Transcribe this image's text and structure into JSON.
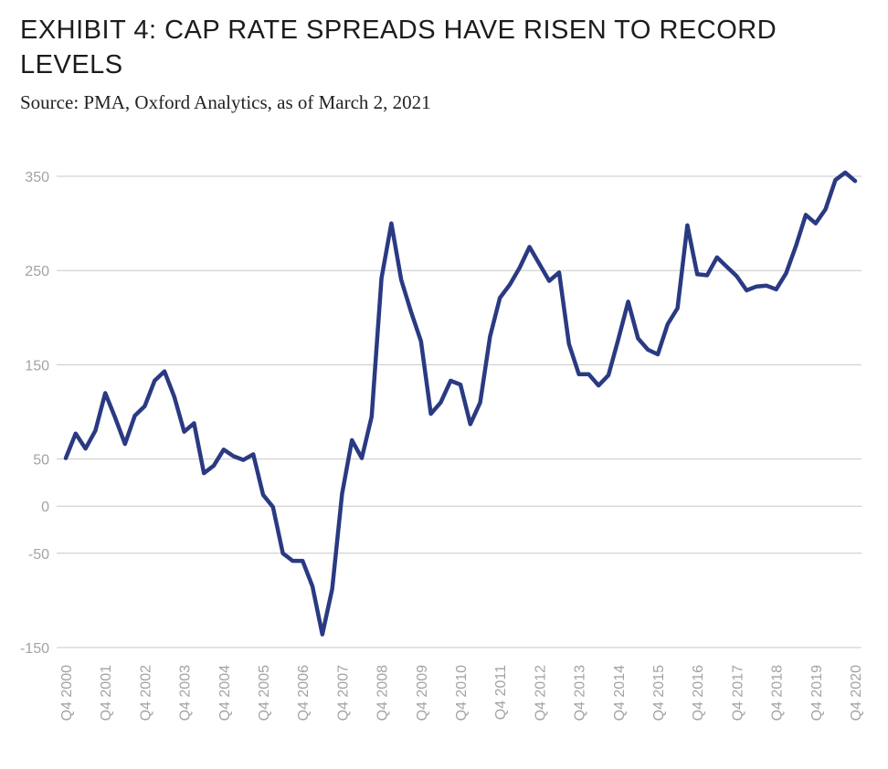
{
  "title": "EXHIBIT 4: CAP RATE SPREADS HAVE RISEN TO RECORD LEVELS",
  "subtitle": "Source: PMA, Oxford Analytics, as of March 2, 2021",
  "chart_data": {
    "type": "line",
    "title": "EXHIBIT 4: CAP RATE SPREADS HAVE RISEN TO RECORD LEVELS",
    "xlabel": "",
    "ylabel": "",
    "y_ticks": [
      350,
      250,
      150,
      50,
      0,
      -50,
      -150
    ],
    "x_tick_labels": [
      "Q4 2000",
      "Q4 2001",
      "Q4 2002",
      "Q4 2003",
      "Q4 2004",
      "Q4 2005",
      "Q4 2006",
      "Q4 2007",
      "Q4 2008",
      "Q4 2009",
      "Q4 2010",
      "Q4 2011",
      "Q4 2012",
      "Q4 2013",
      "Q4 2014",
      "Q4 2015",
      "Q4 2016",
      "Q4 2017",
      "Q4 2018",
      "Q4 2019",
      "Q4 2020"
    ],
    "grid": true,
    "line_color": "#2a3a82",
    "series": [
      {
        "values": [
          51,
          77,
          61,
          80,
          120,
          94,
          66,
          96,
          106,
          133,
          143,
          116,
          79,
          88,
          35,
          43,
          60,
          53,
          49,
          55,
          12,
          -1,
          -50,
          -58,
          -58,
          -85,
          -136,
          -88,
          13,
          70,
          51,
          95,
          242,
          300,
          240,
          206,
          175,
          98,
          110,
          133,
          129,
          87,
          110,
          180,
          221,
          235,
          253,
          275,
          257,
          239,
          248,
          172,
          140,
          140,
          128,
          139,
          177,
          217,
          178,
          166,
          161,
          193,
          210,
          298,
          246,
          245,
          264,
          254,
          244,
          229,
          233,
          234,
          230,
          247,
          276,
          309,
          300,
          315,
          346,
          354,
          345
        ]
      }
    ]
  },
  "colors": {
    "line": "#2a3a82",
    "grid": "#c8c8c8",
    "tick_text": "#a3a3a3",
    "title": "#1c1c1c"
  }
}
